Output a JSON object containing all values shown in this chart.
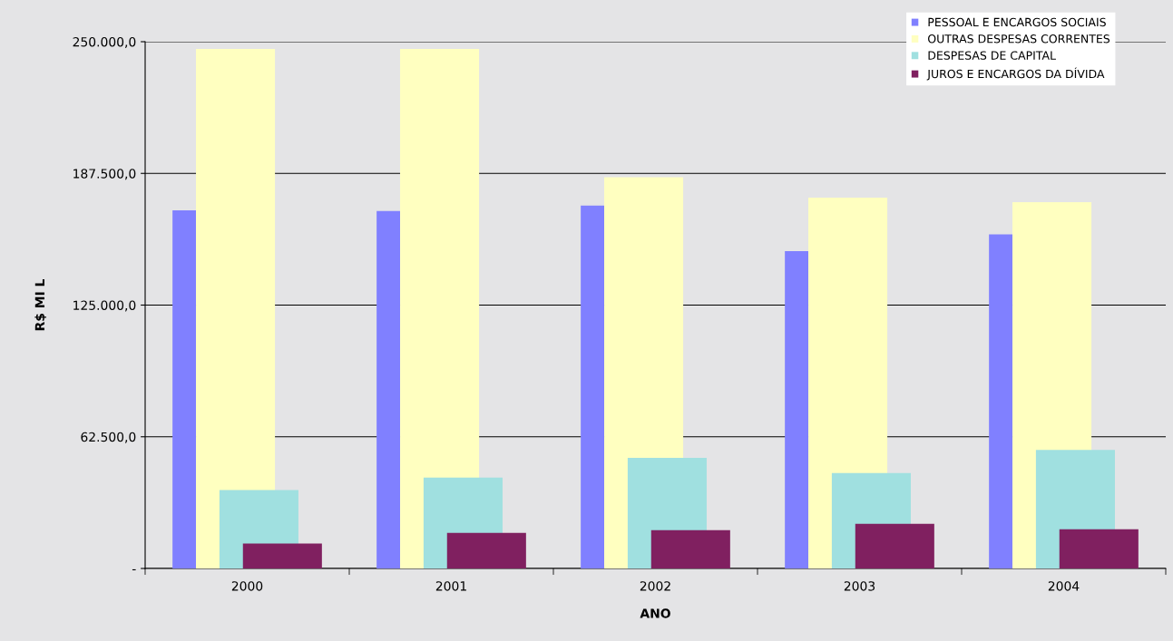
{
  "chart_data": {
    "type": "bar",
    "xlabel": "ANO",
    "ylabel": "R$ MI L",
    "categories": [
      "2000",
      "2001",
      "2002",
      "2003",
      "2004"
    ],
    "series": [
      {
        "name": "PESSOAL E ENCARGOS SOCIAIS",
        "color": "#8080ff",
        "values": [
          170000,
          169600,
          172200,
          150600,
          158600
        ]
      },
      {
        "name": "OUTRAS DESPESAS CORRENTES",
        "color": "#ffffc0",
        "values": [
          246600,
          246600,
          185700,
          176000,
          173800
        ]
      },
      {
        "name": "DESPESAS DE CAPITAL",
        "color": "#a0e0e0",
        "values": [
          37200,
          43100,
          52500,
          45300,
          56300
        ]
      },
      {
        "name": "JUROS E ENCARGOS DA DÍVIDA",
        "color": "#802060",
        "values": [
          11800,
          16900,
          18200,
          21200,
          18600
        ]
      }
    ],
    "ylim": [
      0,
      250000
    ],
    "yticks": [
      {
        "value": 0,
        "label": "-"
      },
      {
        "value": 62500,
        "label": "62.500,0"
      },
      {
        "value": 125000,
        "label": "125.000,0"
      },
      {
        "value": 187500,
        "label": "187.500,0"
      },
      {
        "value": 250000,
        "label": "250.000,0"
      }
    ],
    "grid": "y",
    "legend": "top right"
  }
}
